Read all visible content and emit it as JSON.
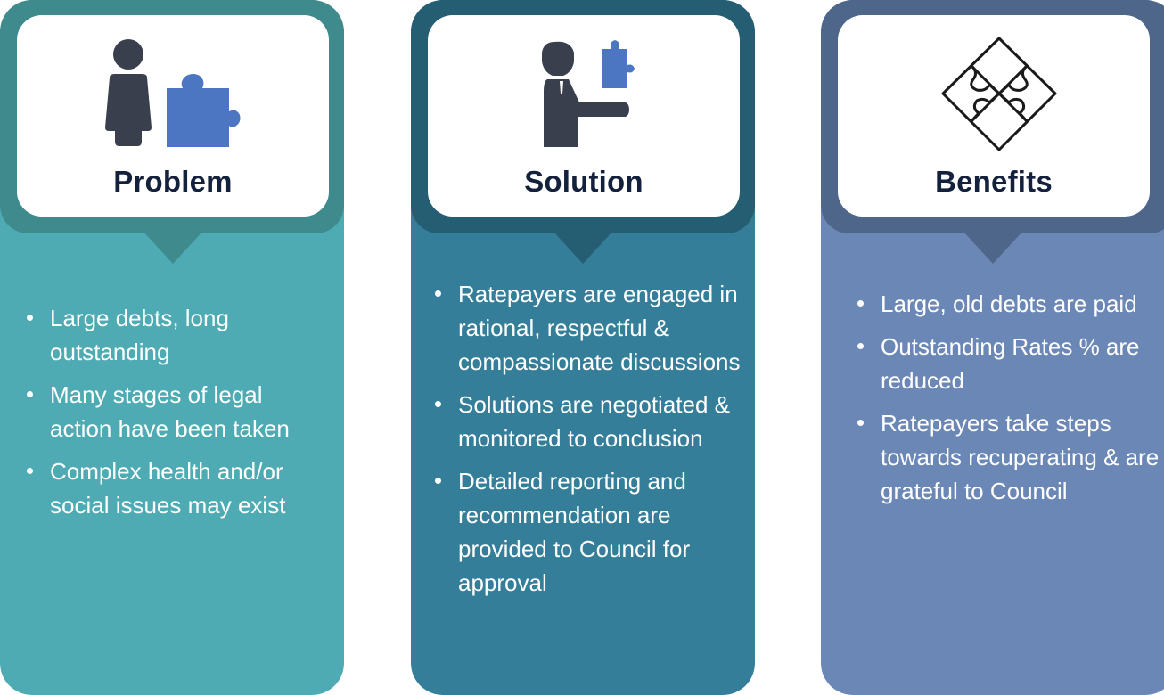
{
  "colors": {
    "problem_header": "#3e8a8d",
    "problem_body": "#4eabb3",
    "solution_header": "#255d73",
    "solution_body": "#347e99",
    "benefits_header": "#4e6689",
    "benefits_body": "#6b87b6",
    "title_text": "#14213d",
    "person_icon": "#3a3f4d",
    "puzzle_icon": "#4c75c2"
  },
  "panels": {
    "problem": {
      "title": "Problem",
      "icons": [
        "person-icon",
        "puzzle-piece-icon"
      ],
      "bullets": [
        "Large debts, long outstanding",
        "Many stages of legal action have been taken",
        "Complex health and/or social issues may exist"
      ]
    },
    "solution": {
      "title": "Solution",
      "icons": [
        "person-holding-puzzle-icon"
      ],
      "bullets": [
        "Ratepayers are engaged in rational, respectful & compassionate discussions",
        "Solutions are negotiated & monitored to conclusion",
        "Detailed reporting and recommendation are provided to Council for approval"
      ]
    },
    "benefits": {
      "title": "Benefits",
      "icons": [
        "assembled-puzzle-icon"
      ],
      "bullets": [
        "Large, old debts are paid",
        "Outstanding Rates % are reduced",
        "Ratepayers take steps towards recuperating & are grateful to Council"
      ]
    }
  }
}
